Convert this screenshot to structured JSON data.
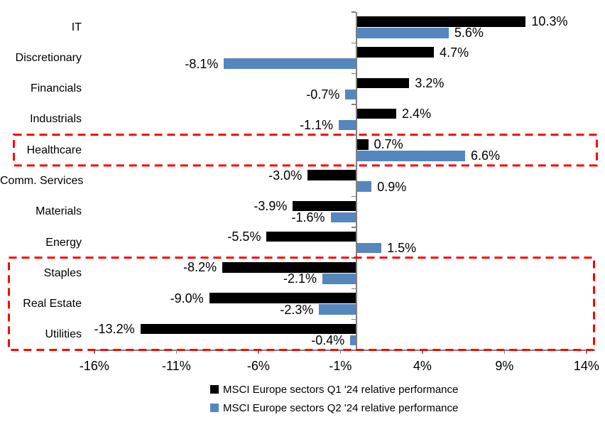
{
  "chart_data": {
    "type": "bar",
    "orientation": "horizontal",
    "title": "",
    "categories": [
      "IT",
      "Discretionary",
      "Financials",
      "Industrials",
      "Healthcare",
      "Comm. Services",
      "Materials",
      "Energy",
      "Staples",
      "Real Estate",
      "Utilities"
    ],
    "series": [
      {
        "key": "q1",
        "name": "MSCI Europe sectors Q1 '24 relative performance",
        "color": "#000000",
        "values": [
          10.3,
          4.7,
          3.2,
          2.4,
          0.7,
          -3.0,
          -3.9,
          -5.5,
          -8.2,
          -9.0,
          -13.2
        ],
        "labels": [
          "10.3%",
          "4.7%",
          "3.2%",
          "2.4%",
          "0.7%",
          "-3.0%",
          "-3.9%",
          "-5.5%",
          "-8.2%",
          "-9.0%",
          "-13.2%"
        ]
      },
      {
        "key": "q2",
        "name": "MSCI Europe sectors Q2 '24 relative performance",
        "color": "#5587BE",
        "values": [
          5.6,
          -8.1,
          -0.7,
          -1.1,
          6.6,
          0.9,
          -1.6,
          1.5,
          -2.1,
          -2.3,
          -0.4
        ],
        "labels": [
          "5.6%",
          "-8.1%",
          "-0.7%",
          "-1.1%",
          "6.6%",
          "0.9%",
          "-1.6%",
          "1.5%",
          "-2.1%",
          "-2.3%",
          "-0.4%"
        ]
      }
    ],
    "x_axis": {
      "min": -16,
      "max": 14,
      "tick_values": [
        -16,
        -11,
        -6,
        -1,
        4,
        9,
        14
      ],
      "tick_labels": [
        "-16%",
        "-11%",
        "-6%",
        "-1%",
        "4%",
        "9%",
        "14%"
      ]
    },
    "grid": false,
    "legend_position": "bottom",
    "axis_color": "#7F7F7F",
    "highlight_color": "#FF0000",
    "highlights": [
      {
        "label": "healthcare",
        "rows": [
          4,
          4
        ],
        "color": "#FF0000",
        "style": "dashed"
      },
      {
        "label": "staples-realestate-utilities",
        "rows": [
          8,
          10
        ],
        "color": "#FF0000",
        "style": "dashed"
      }
    ]
  }
}
